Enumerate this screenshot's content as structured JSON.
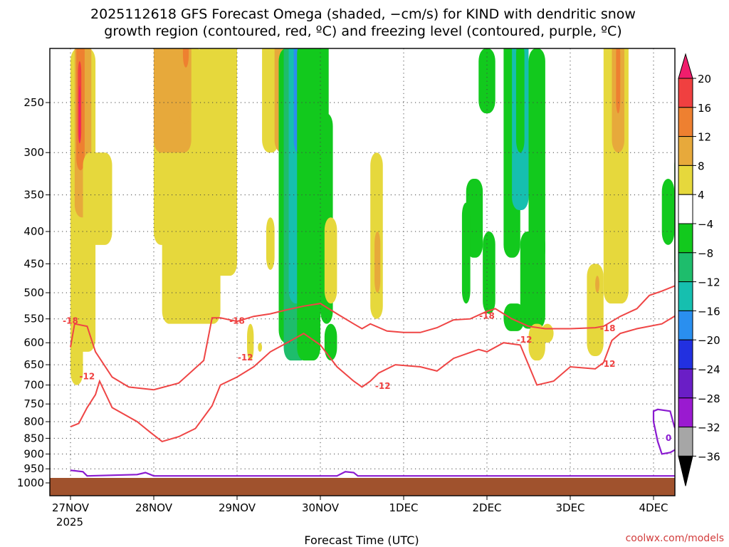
{
  "chart_data": {
    "type": "heatmap",
    "title_line1": "2025112618 GFS Forecast Omega (shaded, −cm/s) for KIND with dendritic snow",
    "title_line2": "growth region (contoured, red, ºC) and freezing level (contoured, purple, ºC)",
    "xlabel": "Forecast Time (UTC)",
    "x_ticks": [
      "27NOV",
      "28NOV",
      "29NOV",
      "30NOV",
      "1DEC",
      "2DEC",
      "3DEC",
      "4DEC"
    ],
    "x_year": "2025",
    "y_ticks": [
      "250",
      "300",
      "350",
      "400",
      "450",
      "500",
      "550",
      "600",
      "650",
      "700",
      "750",
      "800",
      "850",
      "900",
      "950",
      "1000"
    ],
    "y_unit": "hPa",
    "y_scale": "log (pressure, inverted)",
    "colorbar_ticks": [
      "20",
      "16",
      "12",
      "8",
      "4",
      "−4",
      "−8",
      "−12",
      "−16",
      "−20",
      "−24",
      "−28",
      "−32",
      "−36"
    ],
    "colorbar_colors": [
      "#f01d6c",
      "#f04040",
      "#ee8030",
      "#e7a93b",
      "#e6d83c",
      "#ffffff",
      "#12c91d",
      "#1ebd6c",
      "#16bfaf",
      "#2a8fef",
      "#2230e0",
      "#6a1ec6",
      "#9a1ad0",
      "#a6a6a6"
    ],
    "contour_labels_red": [
      "-18",
      "-12",
      "-18",
      "-12",
      "-12",
      "-18",
      "-12",
      "-18",
      "-12"
    ],
    "contour_labels_purple": [
      "0"
    ],
    "dgz_top_hpa": [
      [
        0,
        610
      ],
      [
        0.05,
        560
      ],
      [
        0.2,
        565
      ],
      [
        0.3,
        620
      ],
      [
        0.5,
        680
      ],
      [
        0.7,
        705
      ],
      [
        1.0,
        712
      ],
      [
        1.3,
        695
      ],
      [
        1.6,
        640
      ],
      [
        1.7,
        548
      ],
      [
        1.8,
        548
      ],
      [
        2.0,
        555
      ],
      [
        2.2,
        545
      ],
      [
        2.4,
        540
      ],
      [
        2.6,
        532
      ],
      [
        2.8,
        525
      ],
      [
        3.0,
        520
      ],
      [
        3.2,
        540
      ],
      [
        3.4,
        560
      ],
      [
        3.5,
        570
      ],
      [
        3.6,
        560
      ],
      [
        3.8,
        575
      ],
      [
        4.0,
        578
      ],
      [
        4.2,
        578
      ],
      [
        4.4,
        568
      ],
      [
        4.6,
        552
      ],
      [
        4.8,
        550
      ],
      [
        5.0,
        535
      ],
      [
        5.1,
        530
      ],
      [
        5.3,
        550
      ],
      [
        5.5,
        565
      ],
      [
        5.7,
        570
      ],
      [
        6.0,
        570
      ],
      [
        6.3,
        568
      ],
      [
        6.4,
        565
      ],
      [
        6.6,
        545
      ],
      [
        6.8,
        530
      ],
      [
        6.95,
        505
      ],
      [
        7.1,
        497
      ],
      [
        7.3,
        485
      ],
      [
        7.35,
        480
      ]
    ],
    "dgz_bottom_hpa": [
      [
        0,
        815
      ],
      [
        0.1,
        805
      ],
      [
        0.2,
        760
      ],
      [
        0.3,
        725
      ],
      [
        0.35,
        690
      ],
      [
        0.5,
        760
      ],
      [
        0.8,
        800
      ],
      [
        0.95,
        830
      ],
      [
        1.1,
        860
      ],
      [
        1.3,
        845
      ],
      [
        1.5,
        820
      ],
      [
        1.7,
        755
      ],
      [
        1.8,
        700
      ],
      [
        2.0,
        680
      ],
      [
        2.2,
        655
      ],
      [
        2.4,
        620
      ],
      [
        2.6,
        600
      ],
      [
        2.8,
        580
      ],
      [
        3.0,
        605
      ],
      [
        3.2,
        655
      ],
      [
        3.4,
        690
      ],
      [
        3.5,
        705
      ],
      [
        3.6,
        690
      ],
      [
        3.7,
        670
      ],
      [
        3.9,
        650
      ],
      [
        4.2,
        655
      ],
      [
        4.4,
        665
      ],
      [
        4.6,
        635
      ],
      [
        4.9,
        615
      ],
      [
        5.0,
        620
      ],
      [
        5.2,
        600
      ],
      [
        5.4,
        605
      ],
      [
        5.6,
        700
      ],
      [
        5.8,
        690
      ],
      [
        6.0,
        655
      ],
      [
        6.3,
        660
      ],
      [
        6.4,
        645
      ],
      [
        6.5,
        595
      ],
      [
        6.6,
        580
      ],
      [
        6.8,
        570
      ],
      [
        7.1,
        560
      ],
      [
        7.3,
        540
      ],
      [
        7.35,
        540
      ]
    ],
    "freezing_level_hpa": [
      [
        0,
        955
      ],
      [
        0.15,
        960
      ],
      [
        0.2,
        975
      ],
      [
        0.8,
        970
      ],
      [
        0.9,
        963
      ],
      [
        1.0,
        975
      ],
      [
        3.2,
        975
      ],
      [
        3.3,
        960
      ],
      [
        3.4,
        963
      ],
      [
        3.45,
        975
      ],
      [
        7.35,
        975
      ]
    ],
    "freezing_level_loop": [
      [
        7.0,
        770
      ],
      [
        7.05,
        765
      ],
      [
        7.2,
        770
      ],
      [
        7.25,
        815
      ],
      [
        7.3,
        835
      ],
      [
        7.35,
        860
      ],
      [
        7.3,
        880
      ],
      [
        7.2,
        895
      ],
      [
        7.1,
        900
      ],
      [
        7.05,
        860
      ],
      [
        7.0,
        800
      ]
    ],
    "shading_note": "omega (−cm/s): positive=upward motion (yellow/orange/red), negative=downward (green/teal/blue)"
  },
  "credit": "coolwx.com/models",
  "colors": {
    "frame": "#000000",
    "terrain": "#a0522d",
    "dgz": "#ef4545",
    "freezing": "#8a1ad0",
    "grid": "#444444"
  }
}
